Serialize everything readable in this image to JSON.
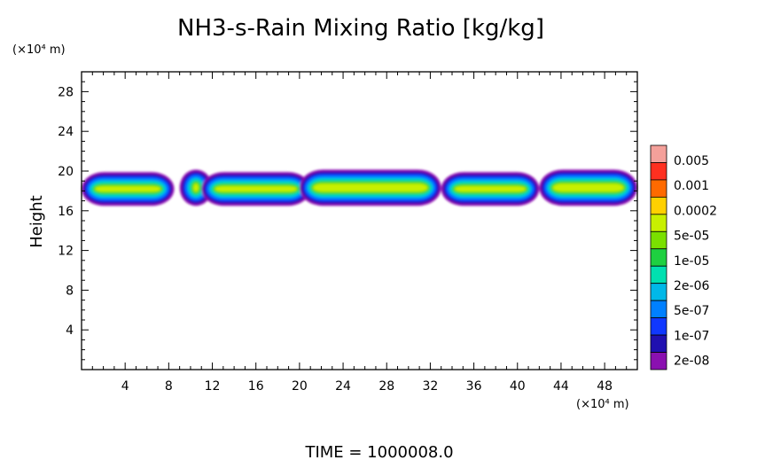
{
  "chart_data": {
    "type": "heatmap",
    "title": "NH3-s-Rain Mixing Ratio [kg/kg]",
    "xlabel": "",
    "ylabel": "Height",
    "x_unit": "(×10⁴ m)",
    "y_unit": "(×10⁴ m)",
    "xlim": [
      0,
      51
    ],
    "ylim": [
      0,
      30
    ],
    "x_ticks": [
      "4",
      "8",
      "12",
      "16",
      "20",
      "24",
      "28",
      "32",
      "36",
      "40",
      "44",
      "48"
    ],
    "y_ticks": [
      "4",
      "8",
      "12",
      "16",
      "20",
      "24",
      "28"
    ],
    "footer": "TIME  =  1000008.0",
    "colorbar": {
      "labels": [
        "0.005",
        "0.001",
        "0.0002",
        "5e-05",
        "1e-05",
        "2e-06",
        "5e-07",
        "1e-07",
        "2e-08"
      ],
      "colors": [
        "#f4a09a",
        "#ff3020",
        "#ff6a00",
        "#ffd000",
        "#c8f000",
        "#7ae000",
        "#1ed040",
        "#00e0b0",
        "#00b8e8",
        "#0080ff",
        "#1038ff",
        "#2010b0",
        "#8a10b0"
      ]
    },
    "cloud_layer": {
      "base_height": 16.5,
      "top_height": 20,
      "peak_value": "5e-05",
      "segments": [
        {
          "x_start": 0,
          "x_end": 8.5
        },
        {
          "x_start": 9,
          "x_end": 12
        },
        {
          "x_start": 11,
          "x_end": 21
        },
        {
          "x_start": 20,
          "x_end": 33
        },
        {
          "x_start": 33,
          "x_end": 42
        },
        {
          "x_start": 42,
          "x_end": 51
        }
      ]
    }
  }
}
